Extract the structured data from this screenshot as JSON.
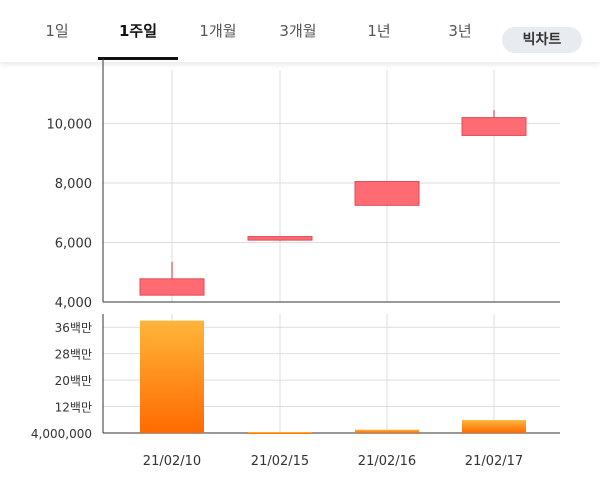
{
  "tabs": [
    {
      "id": "1d",
      "label": "1일",
      "active": false
    },
    {
      "id": "1w",
      "label": "1주일",
      "active": true
    },
    {
      "id": "1m",
      "label": "1개월",
      "active": false
    },
    {
      "id": "3m",
      "label": "3개월",
      "active": false
    },
    {
      "id": "1y",
      "label": "1년",
      "active": false
    },
    {
      "id": "3y",
      "label": "3년",
      "active": false
    }
  ],
  "big_chart_label": "빅차트",
  "colors": {
    "candle_fill": "#fe6b73",
    "candle_stroke": "#e04b55",
    "volume_top": "#ffb53a",
    "volume_bottom": "#ff6a00",
    "grid": "#dddddd",
    "axis": "#333333"
  },
  "chart_data": [
    {
      "type": "candlestick",
      "categories": [
        "21/02/10",
        "21/02/15",
        "21/02/16",
        "21/02/17"
      ],
      "ohlc": [
        {
          "open": 4230,
          "high": 5350,
          "low": 4230,
          "close": 4780
        },
        {
          "open": 6080,
          "high": 6200,
          "low": 6050,
          "close": 6200
        },
        {
          "open": 7250,
          "high": 8050,
          "low": 7250,
          "close": 8050
        },
        {
          "open": 9600,
          "high": 10450,
          "low": 9600,
          "close": 10200
        }
      ],
      "y_ticks": [
        4000,
        6000,
        8000,
        10000
      ],
      "y_tick_labels": [
        "4,000",
        "6,000",
        "8,000",
        "10,000"
      ],
      "ylim": [
        4000,
        11800
      ],
      "grid": true
    },
    {
      "type": "bar",
      "categories": [
        "21/02/10",
        "21/02/15",
        "21/02/16",
        "21/02/17"
      ],
      "values": [
        38000000,
        4300000,
        5000000,
        7900000
      ],
      "y_ticks": [
        4000000,
        12000000,
        20000000,
        28000000,
        36000000
      ],
      "y_tick_labels": [
        "4,000,000",
        "12백만",
        "20백만",
        "28백만",
        "36백만"
      ],
      "ylim": [
        4000000,
        40000000
      ],
      "grid": true
    }
  ]
}
